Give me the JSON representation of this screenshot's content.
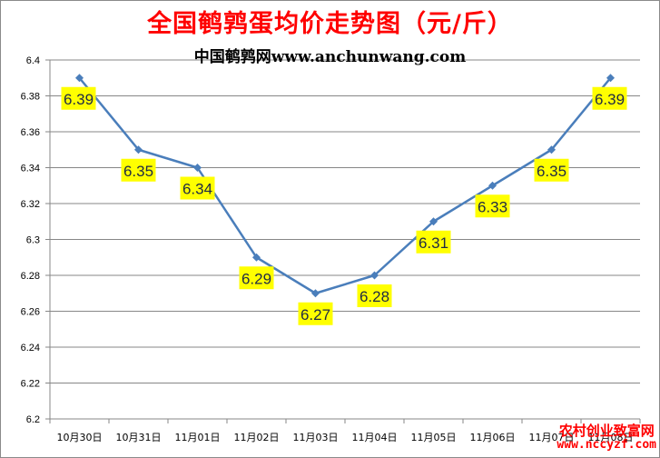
{
  "chart_data": {
    "type": "line",
    "title": "全国鹌鹑蛋均价走势图（元/斤）",
    "subtitle": "中国鹌鹑网www.anchunwang.com",
    "categories": [
      "10月30日",
      "10月31日",
      "11月01日",
      "11月02日",
      "11月03日",
      "11月04日",
      "11月05日",
      "11月06日",
      "11月07日",
      "11月08日"
    ],
    "series": [
      {
        "values": [
          6.39,
          6.35,
          6.34,
          6.29,
          6.27,
          6.28,
          6.31,
          6.33,
          6.35,
          6.39
        ]
      }
    ],
    "data_labels": [
      "6.39",
      "6.35",
      "6.34",
      "6.29",
      "6.27",
      "6.28",
      "6.31",
      "6.33",
      "6.35",
      "6.39"
    ],
    "y_ticks": [
      "6.2",
      "6.22",
      "6.24",
      "6.26",
      "6.28",
      "6.3",
      "6.32",
      "6.34",
      "6.36",
      "6.38",
      "6.4"
    ],
    "ylim": [
      6.2,
      6.4
    ],
    "xlabel": "",
    "ylabel": "",
    "grid": true,
    "legend": "none",
    "colors": {
      "line": "#4a7ebb",
      "marker": "#4a7ebb",
      "label_bg": "#ffff00",
      "title": "#ff0000",
      "grid": "#878787"
    }
  },
  "watermark": {
    "line1": "农村创业致富网",
    "line2": "www.nccyzf.com"
  }
}
